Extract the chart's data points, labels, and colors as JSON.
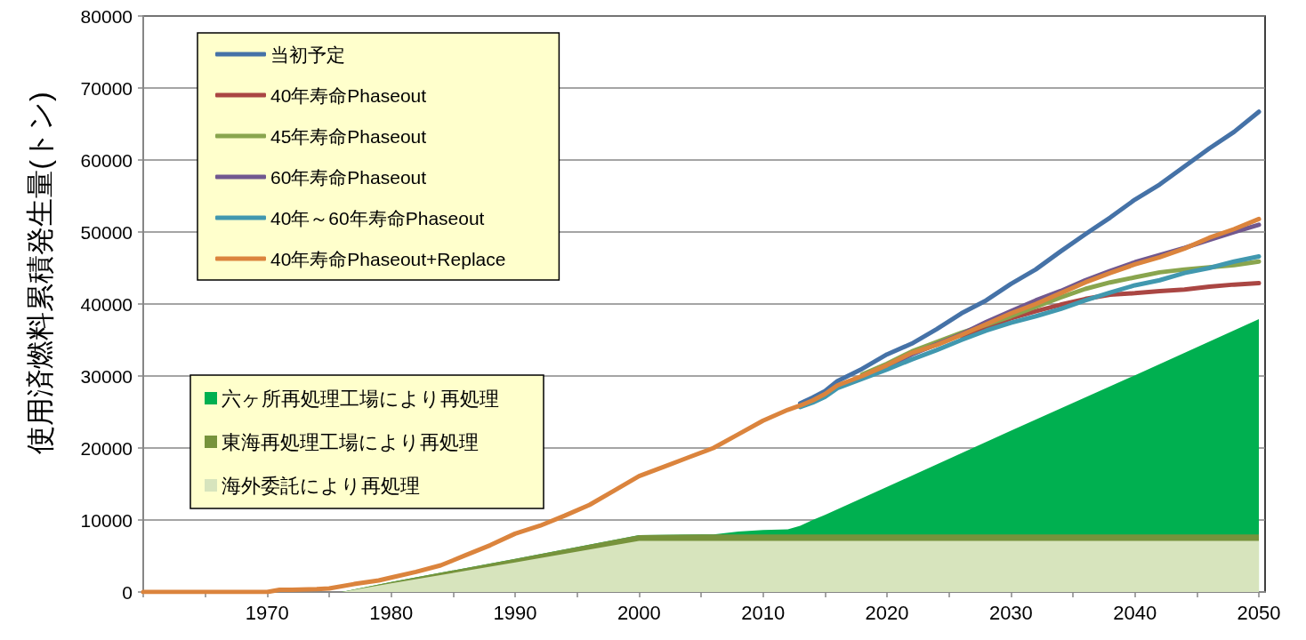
{
  "chart_data": {
    "type": "line",
    "ylabel": "使用済燃料累積発生量(トン)",
    "x": [
      1960,
      1965,
      1970,
      1971,
      1972,
      1974,
      1975,
      1977,
      1979,
      1980,
      1982,
      1984,
      1986,
      1988,
      1990,
      1992,
      1994,
      1996,
      1998,
      2000,
      2002,
      2004,
      2006,
      2008,
      2010,
      2012,
      2013,
      2014,
      2015,
      2016,
      2018,
      2020,
      2022,
      2024,
      2026,
      2028,
      2030,
      2032,
      2034,
      2036,
      2038,
      2040,
      2042,
      2044,
      2046,
      2048,
      2050
    ],
    "xlim": [
      1960,
      2050.5
    ],
    "xticks": [
      {
        "value": 1960,
        "label": null
      },
      {
        "value": 1965,
        "label": null
      },
      1970,
      {
        "value": 1975,
        "label": null
      },
      1980,
      {
        "value": 1985,
        "label": null
      },
      1990,
      {
        "value": 1995,
        "label": null
      },
      2000,
      {
        "value": 2005,
        "label": null
      },
      2010,
      {
        "value": 2015,
        "label": null
      },
      2020,
      {
        "value": 2025,
        "label": null
      },
      2030,
      {
        "value": 2035,
        "label": null
      },
      2040,
      {
        "value": 2045,
        "label": null
      },
      2050
    ],
    "ylim": [
      0,
      80000
    ],
    "yticks": [
      0,
      10000,
      20000,
      30000,
      40000,
      50000,
      60000,
      70000,
      80000
    ],
    "grid": "y",
    "legend": "top left",
    "marker": "none",
    "line_style": "solid",
    "stacked": true,
    "series": [
      {
        "type": "area",
        "name": "海外委託により再処理",
        "color": "#d7e4bd",
        "x": [
          1960,
          1976,
          1980,
          1990,
          2000,
          2005,
          2006,
          2008,
          2010,
          2012,
          2013,
          2014,
          2015,
          2020,
          2030,
          2040,
          2050
        ],
        "values": [
          0,
          0,
          1200,
          4100,
          7100,
          7100,
          7100,
          7100,
          7100,
          7100,
          7100,
          7100,
          7100,
          7100,
          7100,
          7100,
          7100
        ]
      },
      {
        "type": "area",
        "name": "東海再処理工場により再処理",
        "color": "#77933c",
        "x": [
          1960,
          1976,
          1980,
          1990,
          2000,
          2005,
          2006,
          2008,
          2010,
          2012,
          2013,
          2014,
          2015,
          2020,
          2030,
          2040,
          2050
        ],
        "values": [
          0,
          0,
          200,
          500,
          800,
          900,
          900,
          900,
          900,
          900,
          900,
          900,
          900,
          900,
          900,
          900,
          900
        ]
      },
      {
        "type": "area",
        "name": "六ヶ所再処理工場により再処理",
        "color": "#00b050",
        "x": [
          1960,
          1976,
          1980,
          1990,
          2000,
          2005,
          2006,
          2008,
          2010,
          2012,
          2013,
          2014,
          2015,
          2020,
          2030,
          2040,
          2050
        ],
        "values": [
          0,
          0,
          0,
          0,
          0,
          0,
          0,
          400,
          600,
          700,
          1200,
          2000,
          2700,
          6600,
          14400,
          22100,
          29900
        ]
      },
      {
        "type": "line",
        "name": "当初予定",
        "color": "#4572a7",
        "values": [
          null,
          null,
          null,
          null,
          null,
          null,
          null,
          null,
          null,
          null,
          null,
          null,
          null,
          null,
          null,
          null,
          null,
          null,
          null,
          null,
          null,
          null,
          null,
          null,
          null,
          null,
          26200,
          27000,
          27900,
          29300,
          31000,
          33000,
          34500,
          36500,
          38700,
          40500,
          42800,
          44800,
          47300,
          49700,
          52000,
          54500,
          56600,
          59100,
          61600,
          63900,
          66700
        ]
      },
      {
        "type": "line",
        "name": "40年寿命Phaseout",
        "color": "#aa4643",
        "values": [
          null,
          null,
          null,
          null,
          null,
          null,
          null,
          null,
          null,
          null,
          null,
          null,
          null,
          null,
          null,
          null,
          null,
          null,
          null,
          null,
          null,
          null,
          null,
          null,
          null,
          null,
          null,
          null,
          null,
          null,
          null,
          null,
          null,
          null,
          35500,
          36700,
          38000,
          39000,
          39900,
          40700,
          41300,
          41500,
          41800,
          42000,
          42400,
          42700,
          42900
        ]
      },
      {
        "type": "line",
        "name": "45年寿命Phaseout",
        "color": "#89a54e",
        "values": [
          null,
          null,
          null,
          null,
          null,
          null,
          null,
          null,
          null,
          null,
          null,
          null,
          null,
          null,
          null,
          null,
          null,
          null,
          null,
          null,
          null,
          null,
          null,
          null,
          null,
          null,
          null,
          null,
          null,
          null,
          30200,
          31700,
          33400,
          34700,
          36000,
          37100,
          38300,
          39600,
          40900,
          42100,
          43000,
          43700,
          44400,
          44800,
          45100,
          45400,
          45900
        ]
      },
      {
        "type": "line",
        "name": "60年寿命Phaseout",
        "color": "#71588f",
        "values": [
          null,
          null,
          null,
          null,
          null,
          null,
          null,
          null,
          null,
          null,
          null,
          null,
          null,
          null,
          null,
          null,
          null,
          null,
          null,
          null,
          null,
          null,
          null,
          null,
          null,
          null,
          null,
          null,
          null,
          28500,
          29800,
          31300,
          33000,
          34400,
          35800,
          37500,
          39000,
          40500,
          41800,
          43300,
          44600,
          45800,
          46800,
          47800,
          48900,
          50000,
          51000
        ]
      },
      {
        "type": "line",
        "name": "40年～60年寿命Phaseout",
        "color": "#4198af",
        "values": [
          null,
          null,
          null,
          null,
          null,
          null,
          null,
          null,
          null,
          null,
          null,
          null,
          null,
          null,
          null,
          null,
          null,
          null,
          null,
          null,
          null,
          null,
          null,
          null,
          null,
          null,
          25700,
          26300,
          27100,
          28300,
          29600,
          30900,
          32300,
          33600,
          35000,
          36300,
          37400,
          38300,
          39300,
          40500,
          41600,
          42600,
          43300,
          44300,
          45000,
          45900,
          46600
        ]
      },
      {
        "type": "line",
        "name": "40年寿命Phaseout+Replace",
        "color": "#db843d",
        "values": [
          0,
          0,
          0,
          300,
          300,
          400,
          500,
          1100,
          1600,
          2000,
          2800,
          3700,
          5100,
          6500,
          8100,
          9200,
          10600,
          12100,
          14100,
          16100,
          17400,
          18700,
          20000,
          21900,
          23800,
          25300,
          25900,
          26600,
          27500,
          28700,
          30000,
          31500,
          33200,
          34300,
          35700,
          37200,
          38700,
          40000,
          41500,
          43000,
          44300,
          45500,
          46500,
          47700,
          49200,
          50400,
          51800
        ]
      }
    ]
  }
}
